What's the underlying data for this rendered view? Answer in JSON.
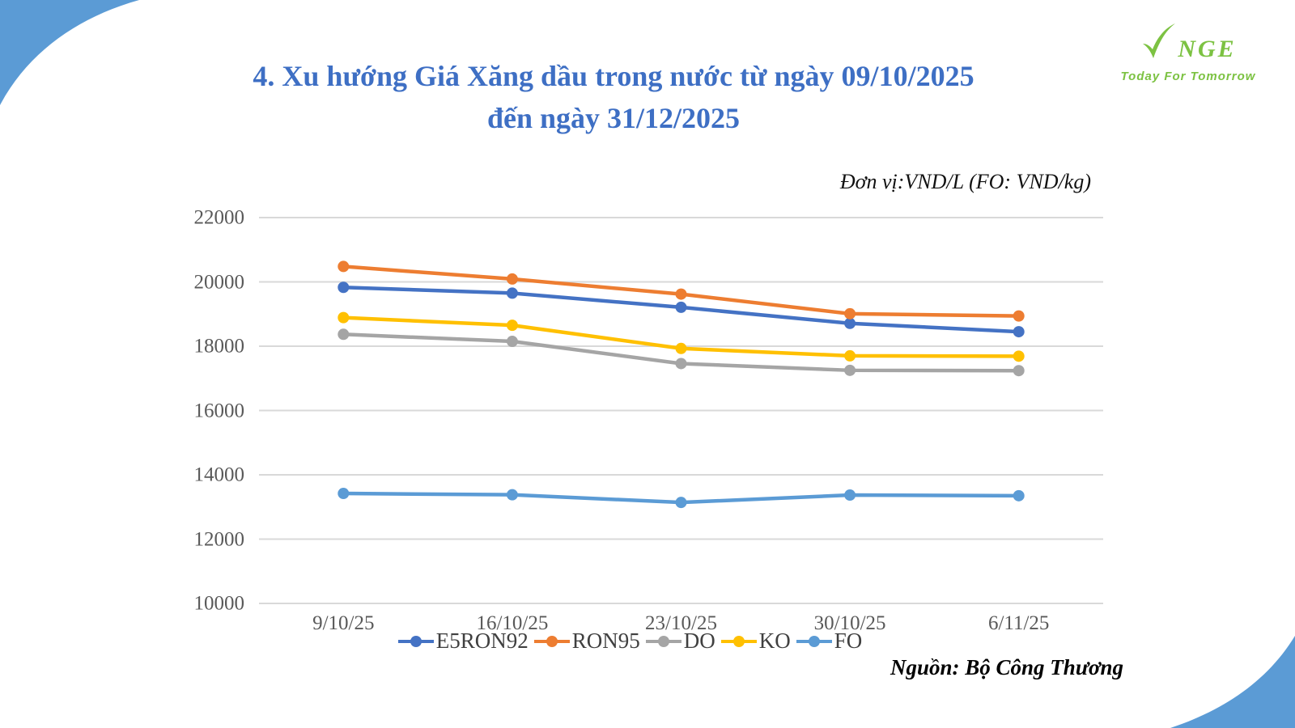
{
  "page": {
    "title_line1": "4. Xu hướng Giá Xăng dầu trong nước từ ngày 09/10/2025",
    "title_line2": "đến ngày 31/12/2025",
    "unit_note": "Đơn vị:VND/L (FO: VND/kg)",
    "source_note": "Nguồn: Bộ Công Thương"
  },
  "logo": {
    "brand": "NGE",
    "brand_full": "VNGE",
    "tagline": "Today For Tomorrow",
    "color": "#7CC242"
  },
  "theme": {
    "title_color": "#3E6FC4",
    "gridline_color": "#D9D9D9",
    "axis_label_color": "#595959",
    "corner_decoration_color": "#5B9BD5"
  },
  "chart_data": {
    "type": "line",
    "title": "Xu hướng Giá Xăng dầu trong nước từ ngày 09/10/2025 đến ngày 31/12/2025",
    "xlabel": "",
    "ylabel": "",
    "unit": "VND/L (FO: VND/kg)",
    "categories": [
      "9/10/25",
      "16/10/25",
      "23/10/25",
      "30/10/25",
      "6/11/25"
    ],
    "series": [
      {
        "name": "E5RON92",
        "color": "#4472C4",
        "values": [
          19830,
          19650,
          19210,
          18710,
          18450
        ]
      },
      {
        "name": "RON95",
        "color": "#ED7D31",
        "values": [
          20480,
          20090,
          19620,
          19010,
          18940
        ]
      },
      {
        "name": "DO",
        "color": "#A5A5A5",
        "values": [
          18370,
          18150,
          17460,
          17250,
          17240
        ]
      },
      {
        "name": "KO",
        "color": "#FFC000",
        "values": [
          18890,
          18650,
          17930,
          17700,
          17690
        ]
      },
      {
        "name": "FO",
        "color": "#5B9BD5",
        "values": [
          13420,
          13380,
          13140,
          13370,
          13350
        ]
      }
    ],
    "ylim": [
      10000,
      22000
    ],
    "yticks": [
      22000,
      20000,
      18000,
      16000,
      14000,
      12000,
      10000
    ],
    "grid": "horizontal-only",
    "legend_position": "bottom",
    "marker": "circle"
  }
}
